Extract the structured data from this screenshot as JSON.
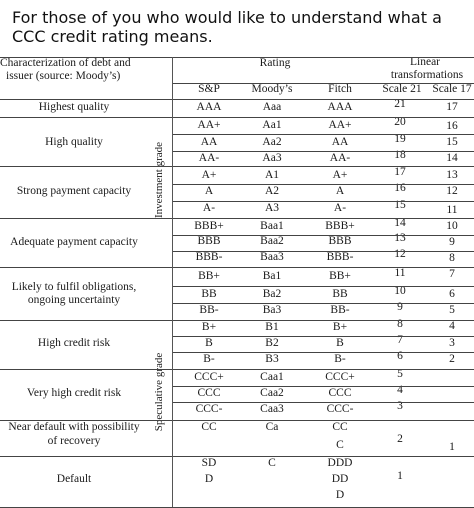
{
  "caption": "For those of you who would like to understand what a CCC credit rating means.",
  "table": {
    "header": {
      "characterization": [
        "Characterization of debt and",
        "issuer (source: Moody’s)"
      ],
      "rating": "Rating",
      "linear": [
        "Linear",
        "transformations"
      ],
      "sp": "S&P",
      "moodys": "Moody’s",
      "fitch": "Fitch",
      "scale21": "Scale 21",
      "scale17": "Scale 17"
    },
    "group_labels": [
      "Investment grade",
      "Speculative grade"
    ],
    "categories": [
      {
        "lines": [
          "Highest quality"
        ]
      },
      {
        "lines": [
          "High quality"
        ]
      },
      {
        "lines": [
          "Strong payment capacity"
        ]
      },
      {
        "lines": [
          "Adequate payment capacity"
        ]
      },
      {
        "lines": [
          "Likely to fulfil obligations,",
          "ongoing uncertainty"
        ]
      },
      {
        "lines": [
          "High credit risk"
        ]
      },
      {
        "lines": [
          "Very high credit risk"
        ]
      },
      {
        "lines": [
          "Near default with possibility",
          "of recovery"
        ]
      },
      {
        "lines": [
          "Default"
        ]
      }
    ],
    "rows": [
      {
        "sp": "AAA",
        "moodys": "Aaa",
        "fitch": "AAA",
        "s21": "21",
        "s17": "17"
      },
      {
        "sp": "AA+",
        "moodys": "Aa1",
        "fitch": "AA+",
        "s21": "20",
        "s17": "16"
      },
      {
        "sp": "AA",
        "moodys": "Aa2",
        "fitch": "AA",
        "s21": "19",
        "s17": "15"
      },
      {
        "sp": "AA-",
        "moodys": "Aa3",
        "fitch": "AA-",
        "s21": "18",
        "s17": "14"
      },
      {
        "sp": "A+",
        "moodys": "A1",
        "fitch": "A+",
        "s21": "17",
        "s17": "13"
      },
      {
        "sp": "A",
        "moodys": "A2",
        "fitch": "A",
        "s21": "16",
        "s17": "12"
      },
      {
        "sp": "A-",
        "moodys": "A3",
        "fitch": "A-",
        "s21": "15",
        "s17": "11"
      },
      {
        "sp": "BBB+",
        "moodys": "Baa1",
        "fitch": "BBB+",
        "s21": "14",
        "s17": "10"
      },
      {
        "sp": "BBB",
        "moodys": "Baa2",
        "fitch": "BBB",
        "s21": "13",
        "s17": "9"
      },
      {
        "sp": "BBB-",
        "moodys": "Baa3",
        "fitch": "BBB-",
        "s21": "12",
        "s17": "8"
      },
      {
        "sp": "BB+",
        "moodys": "Ba1",
        "fitch": "BB+",
        "s21": "11",
        "s17": "7"
      },
      {
        "sp": "BB",
        "moodys": "Ba2",
        "fitch": "BB",
        "s21": "10",
        "s17": "6"
      },
      {
        "sp": "BB-",
        "moodys": "Ba3",
        "fitch": "BB-",
        "s21": "9",
        "s17": "5"
      },
      {
        "sp": "B+",
        "moodys": "B1",
        "fitch": "B+",
        "s21": "8",
        "s17": "4"
      },
      {
        "sp": "B",
        "moodys": "B2",
        "fitch": "B",
        "s21": "7",
        "s17": "3"
      },
      {
        "sp": "B-",
        "moodys": "B3",
        "fitch": "B-",
        "s21": "6",
        "s17": "2"
      },
      {
        "sp": "CCC+",
        "moodys": "Caa1",
        "fitch": "CCC+",
        "s21": "5",
        "s17": ""
      },
      {
        "sp": "CCC",
        "moodys": "Caa2",
        "fitch": "CCC",
        "s21": "4",
        "s17": ""
      },
      {
        "sp": "CCC-",
        "moodys": "Caa3",
        "fitch": "CCC-",
        "s21": "3",
        "s17": ""
      }
    ],
    "near_default": {
      "sp": "CC",
      "moodys": "Ca",
      "fitch": [
        "CC",
        "C"
      ],
      "s21": "2",
      "s17": "1"
    },
    "default": {
      "sp": [
        "SD",
        "D"
      ],
      "moodys": "C",
      "fitch": [
        "DDD",
        "DD",
        "D"
      ],
      "s21": "1"
    }
  }
}
